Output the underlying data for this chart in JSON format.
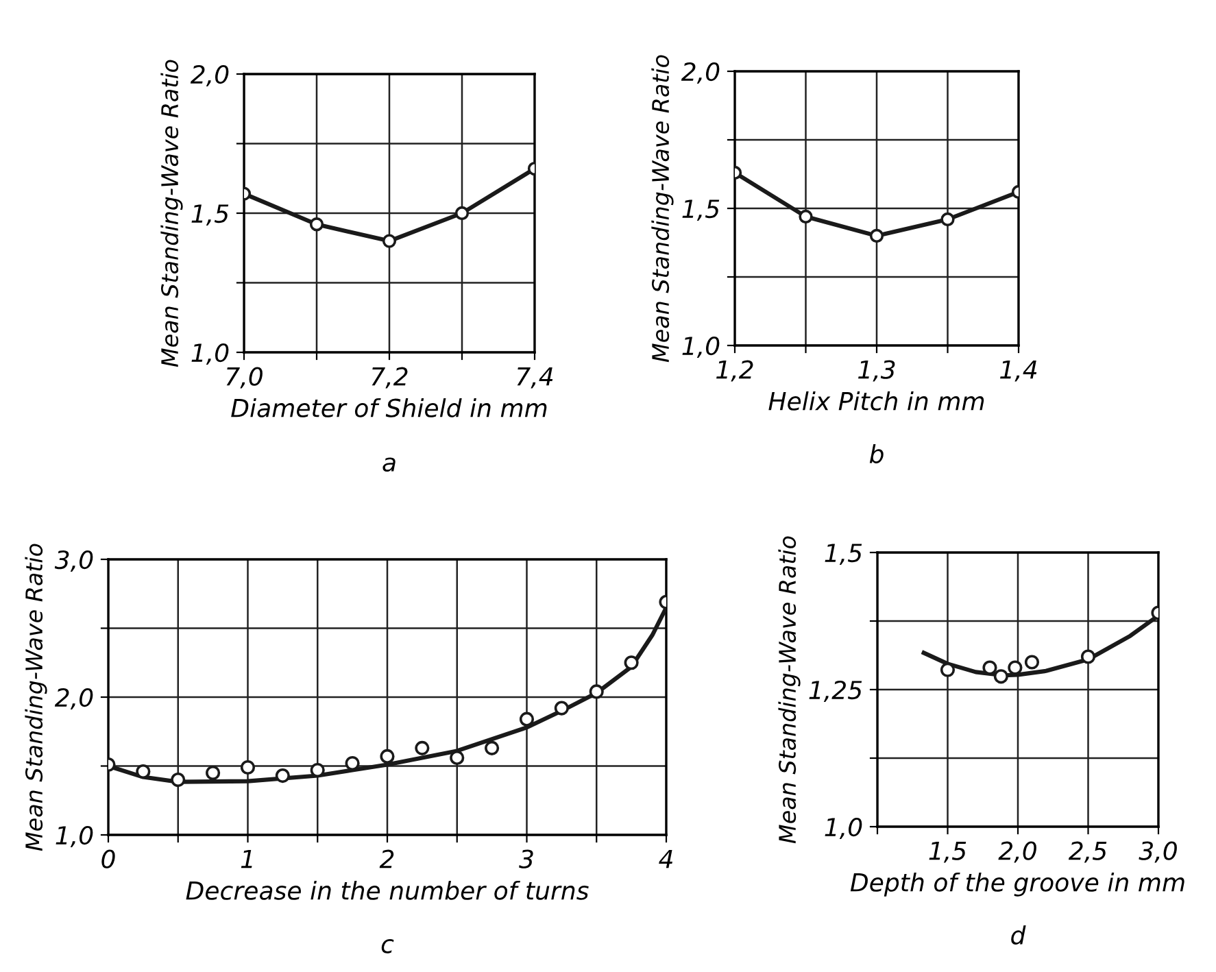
{
  "chart_data": [
    {
      "type": "line",
      "ylabel": "Mean Standing-Wave Ratio",
      "xlabel": "Diameter of Shield in mm",
      "annotations": [
        "a"
      ],
      "grid": true,
      "marker": "circle",
      "line_style": "solid",
      "xlim": [
        7.0,
        7.4
      ],
      "xticks": [
        {
          "value": 7.0,
          "label": "7,0"
        },
        {
          "value": 7.1,
          "label": null
        },
        {
          "value": 7.2,
          "label": "7,2"
        },
        {
          "value": 7.3,
          "label": null
        },
        {
          "value": 7.4,
          "label": "7,4"
        }
      ],
      "ylim": [
        1.0,
        2.0
      ],
      "yticks": [
        {
          "value": 1.0,
          "label": "1,0"
        },
        {
          "value": 1.25,
          "label": null
        },
        {
          "value": 1.5,
          "label": "1,5"
        },
        {
          "value": 1.75,
          "label": null
        },
        {
          "value": 2.0,
          "label": "2,0"
        }
      ],
      "series": [
        {
          "color": "#1a1a1a",
          "x": [
            7.0,
            7.1,
            7.2,
            7.3,
            7.4
          ],
          "values": [
            1.57,
            1.46,
            1.4,
            1.5,
            1.66
          ]
        }
      ]
    },
    {
      "type": "line",
      "ylabel": "Mean Standing-Wave Ratio",
      "xlabel": "Helix Pitch in mm",
      "annotations": [
        "b"
      ],
      "grid": true,
      "marker": "circle",
      "line_style": "solid",
      "xlim": [
        1.2,
        1.4
      ],
      "xticks": [
        {
          "value": 1.2,
          "label": "1,2"
        },
        {
          "value": 1.25,
          "label": null
        },
        {
          "value": 1.3,
          "label": "1,3"
        },
        {
          "value": 1.35,
          "label": null
        },
        {
          "value": 1.4,
          "label": "1,4"
        }
      ],
      "ylim": [
        1.0,
        2.0
      ],
      "yticks": [
        {
          "value": 1.0,
          "label": "1,0"
        },
        {
          "value": 1.25,
          "label": null
        },
        {
          "value": 1.5,
          "label": "1,5"
        },
        {
          "value": 1.75,
          "label": null
        },
        {
          "value": 2.0,
          "label": "2,0"
        }
      ],
      "series": [
        {
          "color": "#1a1a1a",
          "x": [
            1.2,
            1.25,
            1.3,
            1.35,
            1.4
          ],
          "values": [
            1.63,
            1.47,
            1.4,
            1.46,
            1.56
          ]
        }
      ]
    },
    {
      "type": "line",
      "ylabel": "Mean Standing-Wave Ratio",
      "xlabel": "Decrease in the number of turns",
      "annotations": [
        "c"
      ],
      "grid": true,
      "line_style": "solid",
      "xlim": [
        0,
        4
      ],
      "xticks": [
        0,
        {
          "value": 0.5,
          "label": null
        },
        1,
        {
          "value": 1.5,
          "label": null
        },
        2,
        {
          "value": 2.5,
          "label": null
        },
        3,
        {
          "value": 3.5,
          "label": null
        },
        4
      ],
      "ylim": [
        1.0,
        3.0
      ],
      "yticks": [
        {
          "value": 1.0,
          "label": "1,0"
        },
        {
          "value": 1.5,
          "label": null
        },
        {
          "value": 2.0,
          "label": "2,0"
        },
        {
          "value": 2.5,
          "label": null
        },
        {
          "value": 3.0,
          "label": "3,0"
        }
      ],
      "series": [
        {
          "type": "scatter",
          "marker": "circle",
          "color": "#1a1a1a",
          "x": [
            0,
            0.25,
            0.5,
            0.75,
            1.0,
            1.25,
            1.5,
            1.75,
            2.0,
            2.25,
            2.5,
            2.75,
            3.0,
            3.25,
            3.5,
            3.75,
            4.0
          ],
          "values": [
            1.51,
            1.46,
            1.4,
            1.45,
            1.49,
            1.43,
            1.47,
            1.52,
            1.57,
            1.63,
            1.56,
            1.63,
            1.84,
            1.92,
            2.04,
            2.25,
            2.69
          ]
        },
        {
          "type": "line",
          "marker": "none",
          "color": "#1a1a1a",
          "x": [
            0,
            0.25,
            0.5,
            1.0,
            1.5,
            2.0,
            2.5,
            3.0,
            3.25,
            3.5,
            3.75,
            3.9,
            4.0
          ],
          "values": [
            1.5,
            1.42,
            1.385,
            1.39,
            1.43,
            1.51,
            1.61,
            1.78,
            1.9,
            2.03,
            2.22,
            2.45,
            2.65
          ]
        }
      ]
    },
    {
      "type": "line",
      "ylabel": "Mean Standing-Wave Ratio",
      "xlabel": "Depth of the groove in mm",
      "annotations": [
        "d"
      ],
      "grid": true,
      "line_style": "solid",
      "xlim": [
        1.0,
        3.0
      ],
      "xticks": [
        {
          "value": 1.0,
          "label": null
        },
        {
          "value": 1.5,
          "label": "1,5"
        },
        {
          "value": 2.0,
          "label": "2,0"
        },
        {
          "value": 2.5,
          "label": "2,5"
        },
        {
          "value": 3.0,
          "label": "3,0"
        }
      ],
      "ylim": [
        1.0,
        1.5
      ],
      "yticks": [
        {
          "value": 1.0,
          "label": "1,0"
        },
        {
          "value": 1.125,
          "label": null
        },
        {
          "value": 1.25,
          "label": "1,25"
        },
        {
          "value": 1.375,
          "label": null
        },
        {
          "value": 1.5,
          "label": "1,5"
        }
      ],
      "series": [
        {
          "type": "scatter",
          "marker": "circle",
          "color": "#1a1a1a",
          "x": [
            1.5,
            1.8,
            1.88,
            1.98,
            2.1,
            2.5,
            3.0
          ],
          "values": [
            1.286,
            1.29,
            1.274,
            1.29,
            1.3,
            1.31,
            1.39
          ]
        },
        {
          "type": "line",
          "marker": "none",
          "color": "#1a1a1a",
          "x": [
            1.33,
            1.5,
            1.7,
            1.9,
            2.0,
            2.2,
            2.5,
            2.8,
            3.0
          ],
          "values": [
            1.317,
            1.297,
            1.282,
            1.276,
            1.277,
            1.284,
            1.305,
            1.348,
            1.385
          ]
        }
      ]
    }
  ]
}
